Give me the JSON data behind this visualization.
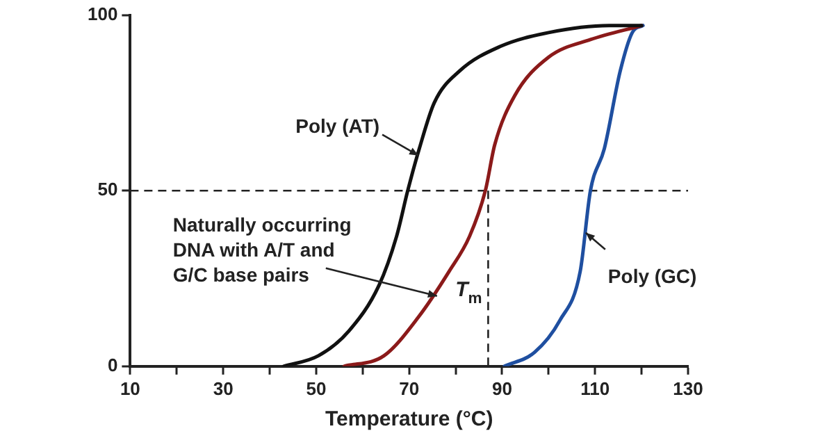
{
  "chart_data": {
    "type": "line",
    "xlabel": "Temperature (°C)",
    "xlim": [
      10,
      130
    ],
    "xticks": [
      10,
      {
        "value": 20,
        "label": null
      },
      30,
      {
        "value": 40,
        "label": null
      },
      50,
      {
        "value": 60,
        "label": null
      },
      70,
      {
        "value": 80,
        "label": null
      },
      90,
      {
        "value": 100,
        "label": null
      },
      110,
      {
        "value": 120,
        "label": null
      },
      130
    ],
    "ylim": [
      0,
      100
    ],
    "yticks": [
      0,
      50,
      100
    ],
    "grid": false,
    "legend": false,
    "marker": "none",
    "line_style": "solid",
    "series": [
      {
        "color": "#111111",
        "x": [
          43,
          50.5,
          57,
          63.5,
          67.3,
          69.7,
          72.2,
          75.4,
          80.8,
          89.5,
          100,
          113,
          120
        ],
        "values": [
          0,
          3,
          10,
          23,
          37,
          50,
          62,
          75,
          84,
          91,
          95,
          97,
          97
        ]
      },
      {
        "color": "#8b1a1a",
        "x": [
          56,
          64.6,
          72,
          78.6,
          83,
          86.4,
          88.4,
          92.7,
          100,
          109,
          120
        ],
        "values": [
          0,
          3,
          14,
          27,
          37,
          50,
          63,
          77,
          88,
          93,
          97
        ]
      },
      {
        "color": "#1f4fa0",
        "x": [
          90.5,
          97,
          102.4,
          106.8,
          109,
          112,
          115.4,
          118,
          120.3
        ],
        "values": [
          0,
          4,
          13,
          27,
          50,
          62,
          84,
          95,
          97
        ]
      }
    ],
    "ref_lines": [
      {
        "axis": "y",
        "value": 50,
        "line_style": "dashed"
      },
      {
        "axis": "x",
        "value": 87,
        "label": "T$_{m}$",
        "line_style": "dashed"
      }
    ],
    "annotations": [
      {
        "text": "Poly (AT)",
        "x": 72,
        "y": 60
      },
      {
        "text": "Naturally occurring\nDNA with A/T and\nG/C base pairs",
        "x": 76,
        "y": 20
      },
      {
        "text": "Poly (GC)",
        "x": 108,
        "y": 38
      }
    ]
  }
}
